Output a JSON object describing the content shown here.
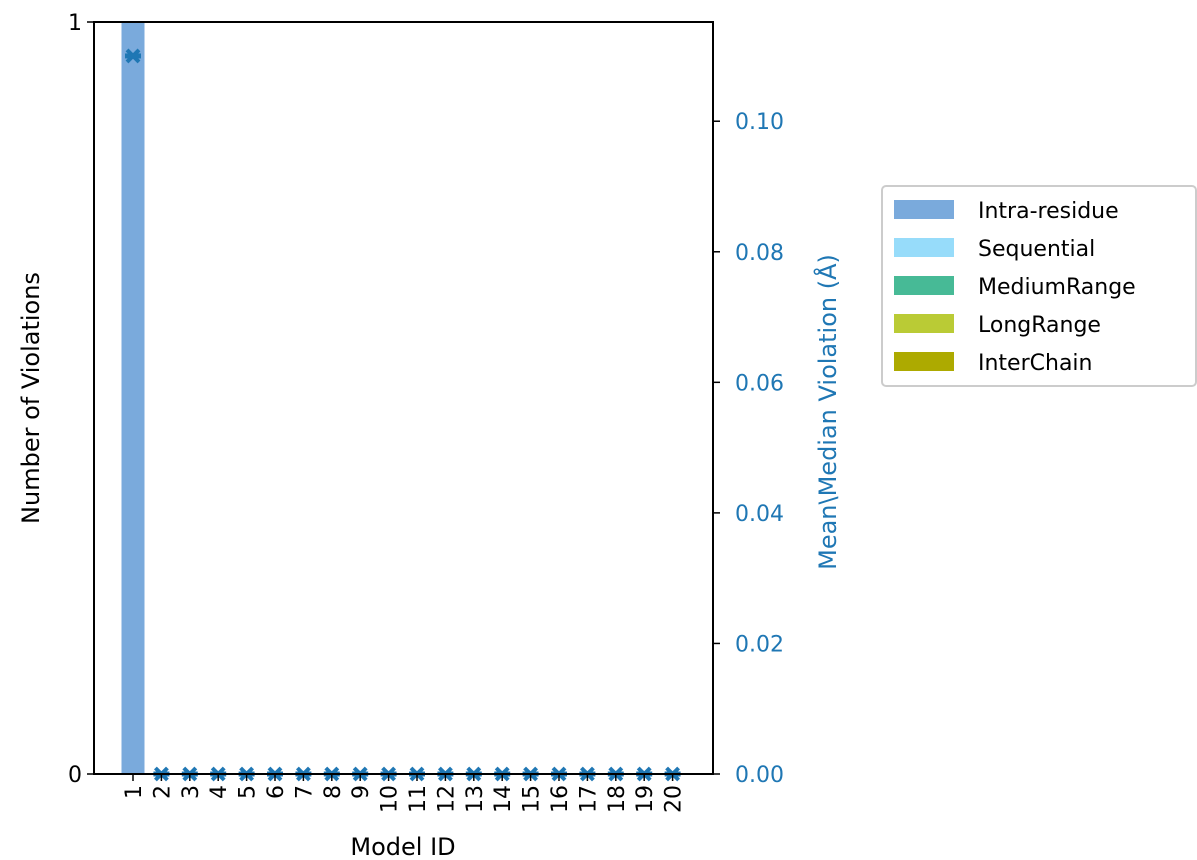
{
  "chart_data": {
    "type": "bar",
    "categories": [
      "1",
      "2",
      "3",
      "4",
      "5",
      "6",
      "7",
      "8",
      "9",
      "10",
      "11",
      "12",
      "13",
      "14",
      "15",
      "16",
      "17",
      "18",
      "19",
      "20"
    ],
    "series": [
      {
        "name": "Intra-residue",
        "color": "#7aaadc",
        "values": [
          1,
          0,
          0,
          0,
          0,
          0,
          0,
          0,
          0,
          0,
          0,
          0,
          0,
          0,
          0,
          0,
          0,
          0,
          0,
          0
        ]
      },
      {
        "name": "Sequential",
        "color": "#97dcfa",
        "values": [
          0,
          0,
          0,
          0,
          0,
          0,
          0,
          0,
          0,
          0,
          0,
          0,
          0,
          0,
          0,
          0,
          0,
          0,
          0,
          0
        ]
      },
      {
        "name": "MediumRange",
        "color": "#47ba96",
        "values": [
          0,
          0,
          0,
          0,
          0,
          0,
          0,
          0,
          0,
          0,
          0,
          0,
          0,
          0,
          0,
          0,
          0,
          0,
          0,
          0
        ]
      },
      {
        "name": "LongRange",
        "color": "#bacb35",
        "values": [
          0,
          0,
          0,
          0,
          0,
          0,
          0,
          0,
          0,
          0,
          0,
          0,
          0,
          0,
          0,
          0,
          0,
          0,
          0,
          0
        ]
      },
      {
        "name": "InterChain",
        "color": "#adaa00",
        "values": [
          0,
          0,
          0,
          0,
          0,
          0,
          0,
          0,
          0,
          0,
          0,
          0,
          0,
          0,
          0,
          0,
          0,
          0,
          0,
          0
        ]
      }
    ],
    "secondary_series": {
      "color": "#1f77b4",
      "marker": "x",
      "values": [
        0.11,
        0,
        0,
        0,
        0,
        0,
        0,
        0,
        0,
        0,
        0,
        0,
        0,
        0,
        0,
        0,
        0,
        0,
        0,
        0
      ]
    },
    "xlabel": "Model ID",
    "ylabel": "Number of Violations",
    "y2label": "Mean\\Median Violation (Å)",
    "ylim": [
      0,
      1
    ],
    "yticks": [
      "0",
      "1"
    ],
    "y2lim": [
      0,
      0.1152
    ],
    "y2ticks": [
      "0.00",
      "0.02",
      "0.04",
      "0.06",
      "0.08",
      "0.10"
    ],
    "legend_position": "right, outside plot",
    "grid": false
  }
}
